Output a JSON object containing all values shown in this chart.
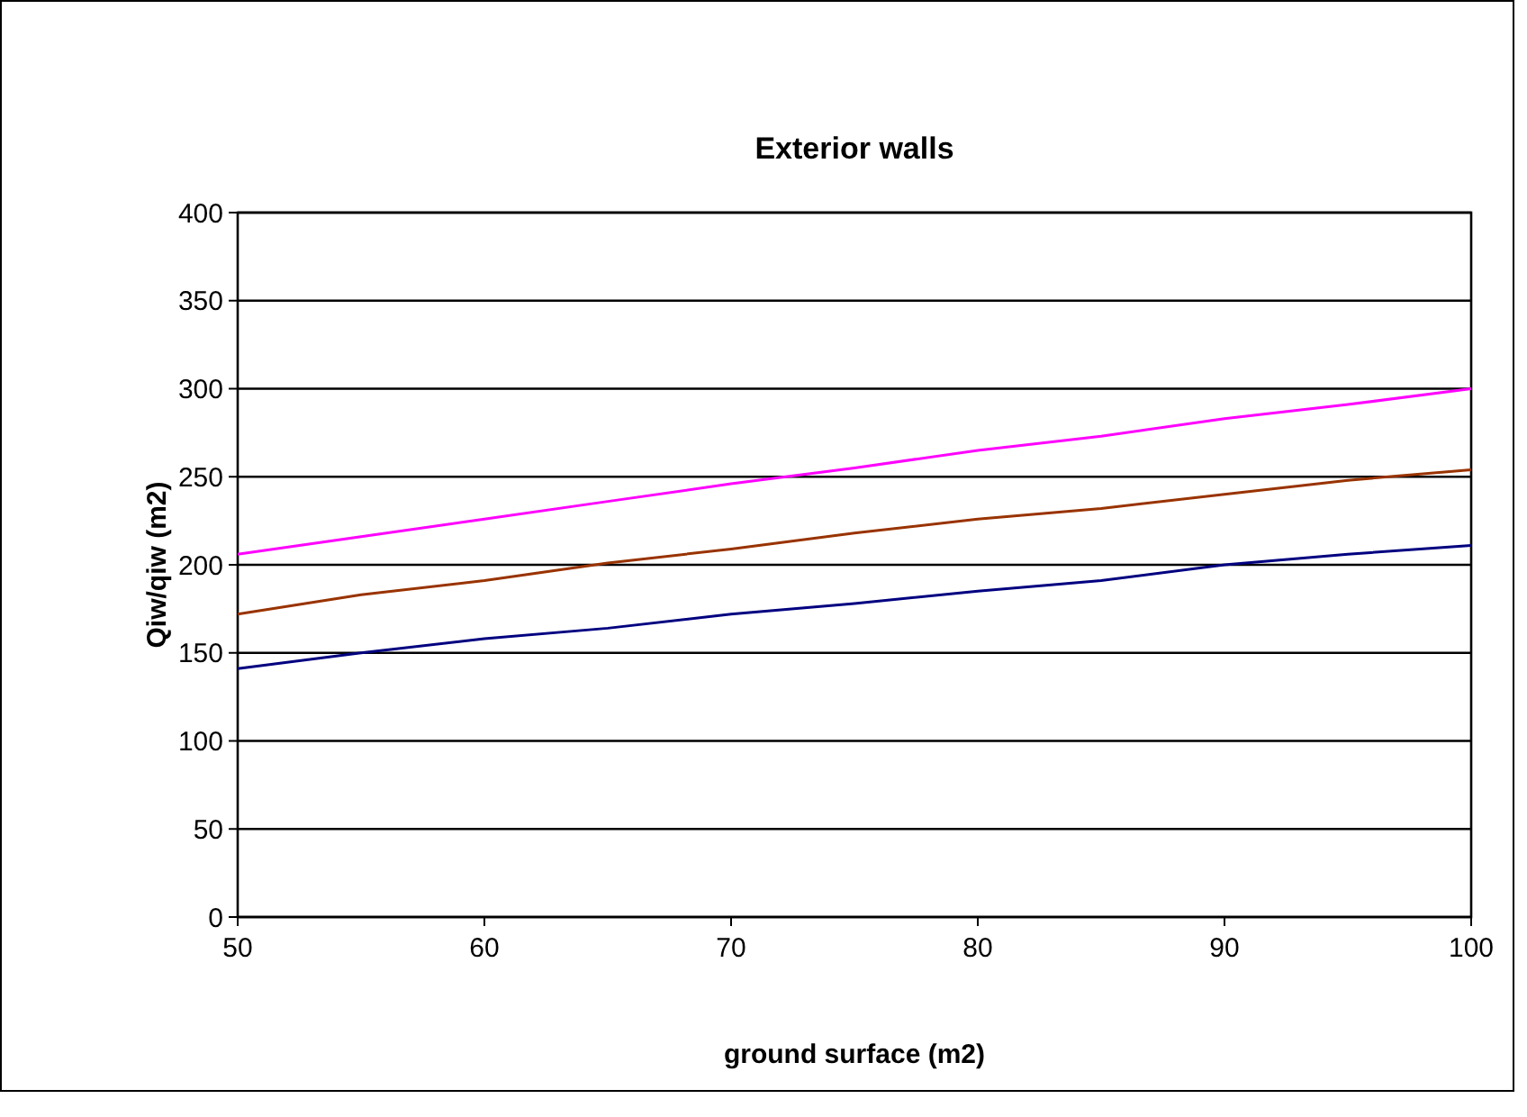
{
  "chart_data": {
    "type": "line",
    "title": "Exterior walls",
    "xlabel": "ground surface (m2)",
    "ylabel": "Qiw/qiw (m2)",
    "x": [
      50,
      55,
      60,
      65,
      70,
      75,
      80,
      85,
      90,
      95,
      100
    ],
    "series": [
      {
        "color": "#ff00ff",
        "values": [
          206,
          216,
          226,
          236,
          246,
          255,
          265,
          273,
          283,
          291,
          300
        ]
      },
      {
        "color": "#993300",
        "values": [
          172,
          183,
          191,
          201,
          209,
          218,
          226,
          232,
          240,
          248,
          254
        ]
      },
      {
        "color": "#000080",
        "values": [
          141,
          150,
          158,
          164,
          172,
          178,
          185,
          191,
          200,
          206,
          211
        ]
      }
    ],
    "xlim": [
      50,
      100
    ],
    "xticks": [
      50,
      60,
      70,
      80,
      90,
      100
    ],
    "ylim": [
      0,
      400
    ],
    "yticks": [
      0,
      50,
      100,
      150,
      200,
      250,
      300,
      350,
      400
    ],
    "grid": "y",
    "marker": "none",
    "line_style": "solid"
  }
}
